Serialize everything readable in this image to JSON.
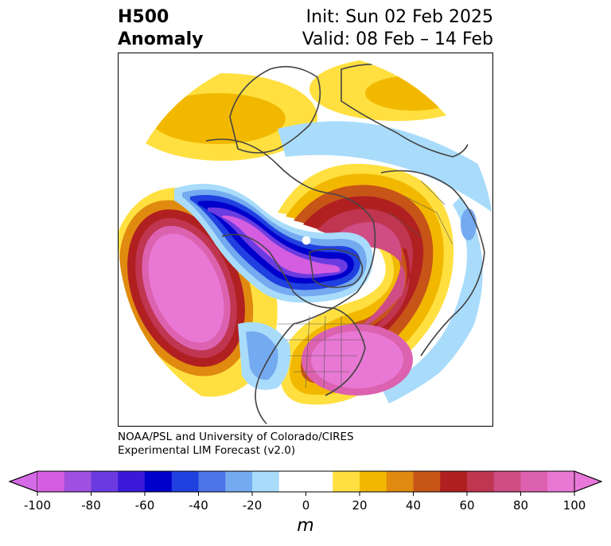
{
  "header": {
    "left_line1": "H500",
    "left_line2": "Anomaly",
    "right_line1": "Init: Sun 02 Feb 2025",
    "right_line2": "Valid: 08 Feb – 14 Feb"
  },
  "credit": {
    "line1": "NOAA/PSL and University of Colorado/CIRES",
    "line2": "Experimental LIM Forecast (v2.0)"
  },
  "colorbar": {
    "unit": "m",
    "ticks": [
      "-100",
      "-80",
      "-60",
      "-40",
      "-20",
      "0",
      "20",
      "40",
      "60",
      "80",
      "100"
    ],
    "colors": [
      "#d45de0",
      "#a050e0",
      "#6a3be0",
      "#3a18d8",
      "#0000cc",
      "#2040e0",
      "#4d74e8",
      "#74aaf0",
      "#a9dcfb",
      "#ffffff",
      "#ffffff",
      "#ffe040",
      "#f2b800",
      "#e08a10",
      "#c85518",
      "#b02020",
      "#c03550",
      "#d04c84",
      "#dc62b0",
      "#e878d4"
    ],
    "under_color": "#d46ae6",
    "over_color": "#e878d8"
  },
  "map": {
    "projection": "north polar stereographic",
    "field": "500 hPa geopotential height anomaly"
  }
}
